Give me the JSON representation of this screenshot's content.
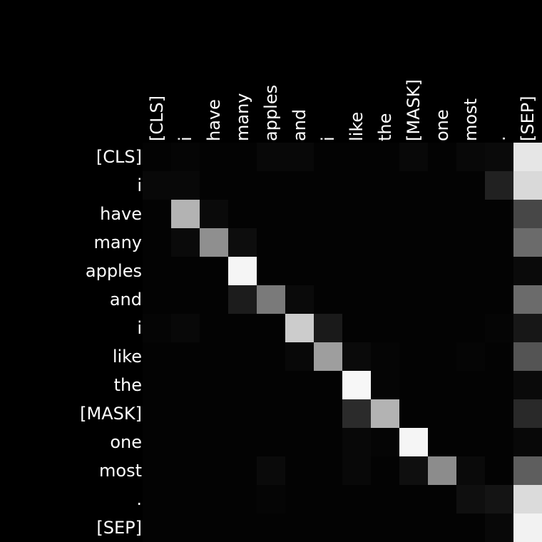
{
  "chart_data": {
    "type": "heatmap",
    "colormap": "grayscale",
    "background": "#000000",
    "label_color": "#ffffff",
    "x_labels": [
      "[CLS]",
      "i",
      "have",
      "many",
      "apples",
      "and",
      "i",
      "like",
      "the",
      "[MASK]",
      "one",
      "most",
      ".",
      "[SEP]"
    ],
    "y_labels": [
      "[CLS]",
      "i",
      "have",
      "many",
      "apples",
      "and",
      "i",
      "like",
      "the",
      "[MASK]",
      "one",
      "most",
      ".",
      "[SEP]"
    ],
    "value_range": [
      0,
      1
    ],
    "values": [
      [
        0.01,
        0.02,
        0.01,
        0.01,
        0.03,
        0.03,
        0.01,
        0.01,
        0.01,
        0.03,
        0.01,
        0.03,
        0.04,
        0.9
      ],
      [
        0.03,
        0.03,
        0.01,
        0.01,
        0.01,
        0.01,
        0.01,
        0.01,
        0.01,
        0.01,
        0.01,
        0.01,
        0.13,
        0.85
      ],
      [
        0.01,
        0.7,
        0.04,
        0.01,
        0.01,
        0.01,
        0.01,
        0.01,
        0.01,
        0.01,
        0.01,
        0.01,
        0.01,
        0.28
      ],
      [
        0.01,
        0.04,
        0.56,
        0.05,
        0.01,
        0.01,
        0.01,
        0.01,
        0.01,
        0.01,
        0.01,
        0.01,
        0.01,
        0.42
      ],
      [
        0.01,
        0.01,
        0.01,
        0.96,
        0.01,
        0.01,
        0.01,
        0.01,
        0.01,
        0.01,
        0.01,
        0.01,
        0.01,
        0.04
      ],
      [
        0.01,
        0.01,
        0.01,
        0.11,
        0.48,
        0.04,
        0.01,
        0.01,
        0.01,
        0.01,
        0.01,
        0.01,
        0.01,
        0.42
      ],
      [
        0.02,
        0.03,
        0.01,
        0.01,
        0.01,
        0.8,
        0.1,
        0.01,
        0.01,
        0.01,
        0.01,
        0.01,
        0.02,
        0.09
      ],
      [
        0.01,
        0.01,
        0.01,
        0.01,
        0.01,
        0.03,
        0.62,
        0.04,
        0.02,
        0.01,
        0.01,
        0.02,
        0.01,
        0.33
      ],
      [
        0.01,
        0.01,
        0.01,
        0.01,
        0.01,
        0.01,
        0.01,
        0.97,
        0.02,
        0.01,
        0.01,
        0.01,
        0.01,
        0.04
      ],
      [
        0.01,
        0.01,
        0.01,
        0.01,
        0.01,
        0.01,
        0.01,
        0.17,
        0.7,
        0.01,
        0.01,
        0.01,
        0.01,
        0.16
      ],
      [
        0.01,
        0.01,
        0.01,
        0.01,
        0.01,
        0.01,
        0.01,
        0.03,
        0.02,
        0.96,
        0.01,
        0.01,
        0.01,
        0.03
      ],
      [
        0.01,
        0.01,
        0.01,
        0.01,
        0.04,
        0.01,
        0.01,
        0.03,
        0.01,
        0.06,
        0.55,
        0.04,
        0.01,
        0.37
      ],
      [
        0.01,
        0.01,
        0.01,
        0.01,
        0.02,
        0.01,
        0.01,
        0.01,
        0.01,
        0.01,
        0.01,
        0.06,
        0.08,
        0.86
      ],
      [
        0.01,
        0.01,
        0.01,
        0.01,
        0.01,
        0.01,
        0.01,
        0.01,
        0.01,
        0.01,
        0.01,
        0.01,
        0.03,
        0.95
      ]
    ]
  }
}
